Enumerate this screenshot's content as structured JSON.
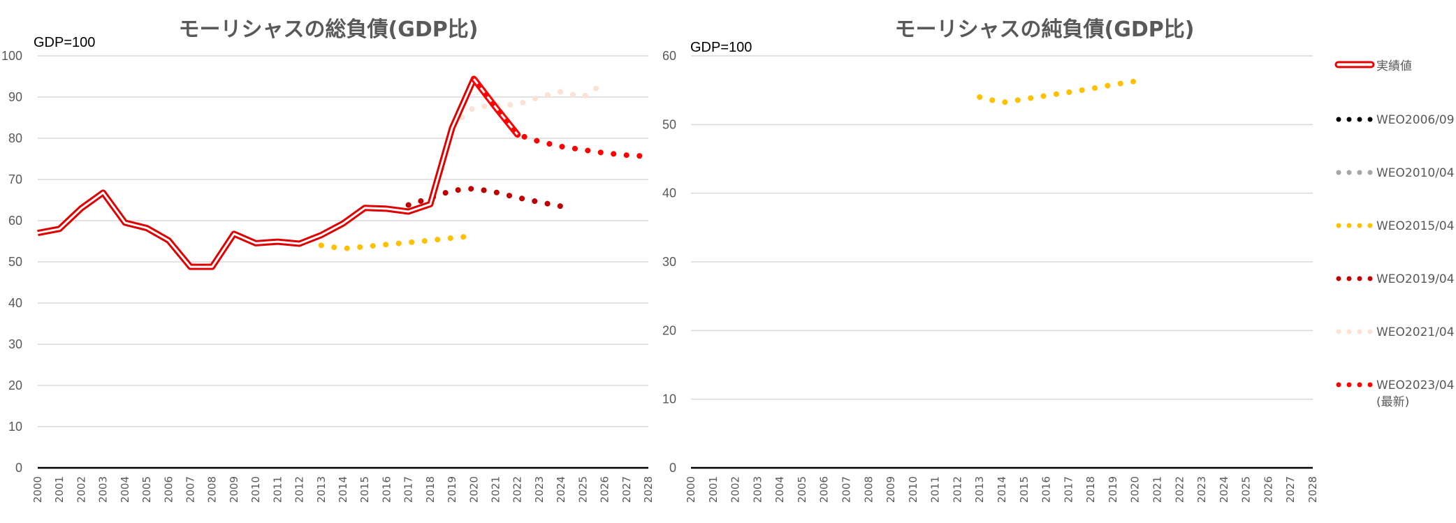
{
  "chart_data": [
    {
      "type": "line",
      "title": "モーリシャスの総負債(GDP比)",
      "unit_label": "GDP=100",
      "xlabel": "",
      "ylabel": "",
      "xlim": [
        2000,
        2028
      ],
      "ylim": [
        0,
        100
      ],
      "y_ticks": [
        0,
        10,
        20,
        30,
        40,
        50,
        60,
        70,
        80,
        90,
        100
      ],
      "x_ticks": [
        2000,
        2001,
        2002,
        2003,
        2004,
        2005,
        2006,
        2007,
        2008,
        2009,
        2010,
        2011,
        2012,
        2013,
        2014,
        2015,
        2016,
        2017,
        2018,
        2019,
        2020,
        2021,
        2022,
        2023,
        2024,
        2025,
        2026,
        2027,
        2028
      ],
      "grid": true,
      "series": [
        {
          "name": "実績値",
          "style": "double-line",
          "color": "#E00000",
          "x": [
            2000,
            2001,
            2002,
            2003,
            2004,
            2005,
            2006,
            2007,
            2008,
            2009,
            2010,
            2011,
            2012,
            2013,
            2014,
            2015,
            2016,
            2017,
            2018,
            2019,
            2020,
            2021,
            2022
          ],
          "y": [
            57.0,
            58.0,
            63.0,
            66.8,
            59.5,
            58.2,
            55.2,
            48.8,
            48.8,
            56.8,
            54.5,
            54.9,
            54.4,
            56.5,
            59.3,
            63.1,
            62.9,
            62.2,
            64.0,
            82.5,
            94.4,
            87.5,
            80.9
          ]
        },
        {
          "name": "WEO2015/04",
          "style": "dotted",
          "color": "#FFC000",
          "x": [
            2013,
            2014,
            2015,
            2016,
            2017,
            2018,
            2019,
            2020
          ],
          "y": [
            54.0,
            53.2,
            53.7,
            54.2,
            54.7,
            55.2,
            55.8,
            56.3
          ]
        },
        {
          "name": "WEO2019/04",
          "style": "dotted",
          "color": "#C00000",
          "x": [
            2017,
            2018,
            2019,
            2020,
            2021,
            2022,
            2023,
            2024
          ],
          "y": [
            63.8,
            65.5,
            67.3,
            67.8,
            66.9,
            65.6,
            64.5,
            63.5
          ]
        },
        {
          "name": "WEO2021/04",
          "style": "dotted",
          "color": "#FBE2D5",
          "x": [
            2019,
            2020,
            2021,
            2022,
            2023,
            2024,
            2025,
            2026
          ],
          "y": [
            83.0,
            87.5,
            88.0,
            88.2,
            90.0,
            91.3,
            90.0,
            93.5
          ]
        },
        {
          "name": "WEO2023/04(最新)",
          "style": "dotted",
          "color": "#FF0000",
          "x": [
            2020,
            2021,
            2022,
            2023,
            2024,
            2025,
            2026,
            2027,
            2028
          ],
          "y": [
            94.4,
            87.5,
            80.9,
            79.2,
            78.0,
            77.2,
            76.4,
            75.9,
            75.6
          ]
        }
      ]
    },
    {
      "type": "line",
      "title": "モーリシャスの純負債(GDP比)",
      "unit_label": "GDP=100",
      "xlabel": "",
      "ylabel": "",
      "xlim": [
        2000,
        2028
      ],
      "ylim": [
        0,
        60
      ],
      "y_ticks": [
        0,
        10,
        20,
        30,
        40,
        50,
        60
      ],
      "x_ticks": [
        2000,
        2001,
        2002,
        2003,
        2004,
        2005,
        2006,
        2007,
        2008,
        2009,
        2010,
        2011,
        2012,
        2013,
        2014,
        2015,
        2016,
        2017,
        2018,
        2019,
        2020,
        2021,
        2022,
        2023,
        2024,
        2025,
        2026,
        2027,
        2028
      ],
      "grid": true,
      "series": [
        {
          "name": "WEO2015/04",
          "style": "dotted",
          "color": "#FFC000",
          "x": [
            2013,
            2014,
            2015,
            2016,
            2017,
            2018,
            2019,
            2020
          ],
          "y": [
            54.0,
            53.2,
            53.7,
            54.2,
            54.7,
            55.2,
            55.8,
            56.3
          ]
        }
      ]
    }
  ],
  "legend": {
    "placement": "right",
    "entries": [
      {
        "label": "実績値",
        "style": "double-line",
        "color": "#E00000"
      },
      {
        "label": "WEO2006/09",
        "style": "dotted",
        "color": "#000000"
      },
      {
        "label": "WEO2010/04",
        "style": "dotted",
        "color": "#A6A6A6"
      },
      {
        "label": "WEO2015/04",
        "style": "dotted",
        "color": "#FFC000"
      },
      {
        "label": "WEO2019/04",
        "style": "dotted",
        "color": "#C00000"
      },
      {
        "label": "WEO2021/04",
        "style": "dotted",
        "color": "#FBE2D5"
      },
      {
        "label": "WEO2023/04",
        "label2": "(最新)",
        "style": "dotted",
        "color": "#FF0000"
      }
    ]
  }
}
